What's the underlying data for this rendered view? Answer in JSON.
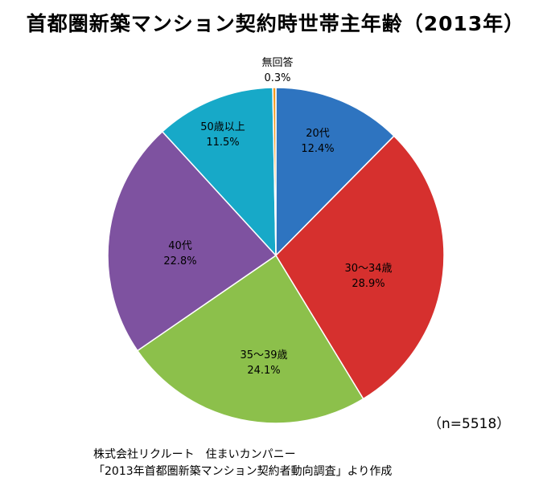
{
  "chart_data": {
    "type": "pie",
    "title": "首都圏新築マンション契約時世帯主年齢（2013年）",
    "slices": [
      {
        "name": "20代",
        "value": 12.4,
        "label": "12.4%",
        "color": "#2e74c0"
      },
      {
        "name": "30〜34歳",
        "value": 28.9,
        "label": "28.9%",
        "color": "#d6302e"
      },
      {
        "name": "35〜39歳",
        "value": 24.1,
        "label": "24.1%",
        "color": "#8cc04b"
      },
      {
        "name": "40代",
        "value": 22.8,
        "label": "22.8%",
        "color": "#7e52a0"
      },
      {
        "name": "50歳以上",
        "value": 11.5,
        "label": "11.5%",
        "color": "#17a9c8"
      },
      {
        "name": "無回答",
        "value": 0.3,
        "label": "0.3%",
        "color": "#f39a1e"
      }
    ],
    "sample_size": "（n=5518）"
  },
  "source": {
    "line1": "株式会社リクルート　住まいカンパニー",
    "line2": "「2013年首都圏新築マンション契約者動向調査」より作成"
  }
}
